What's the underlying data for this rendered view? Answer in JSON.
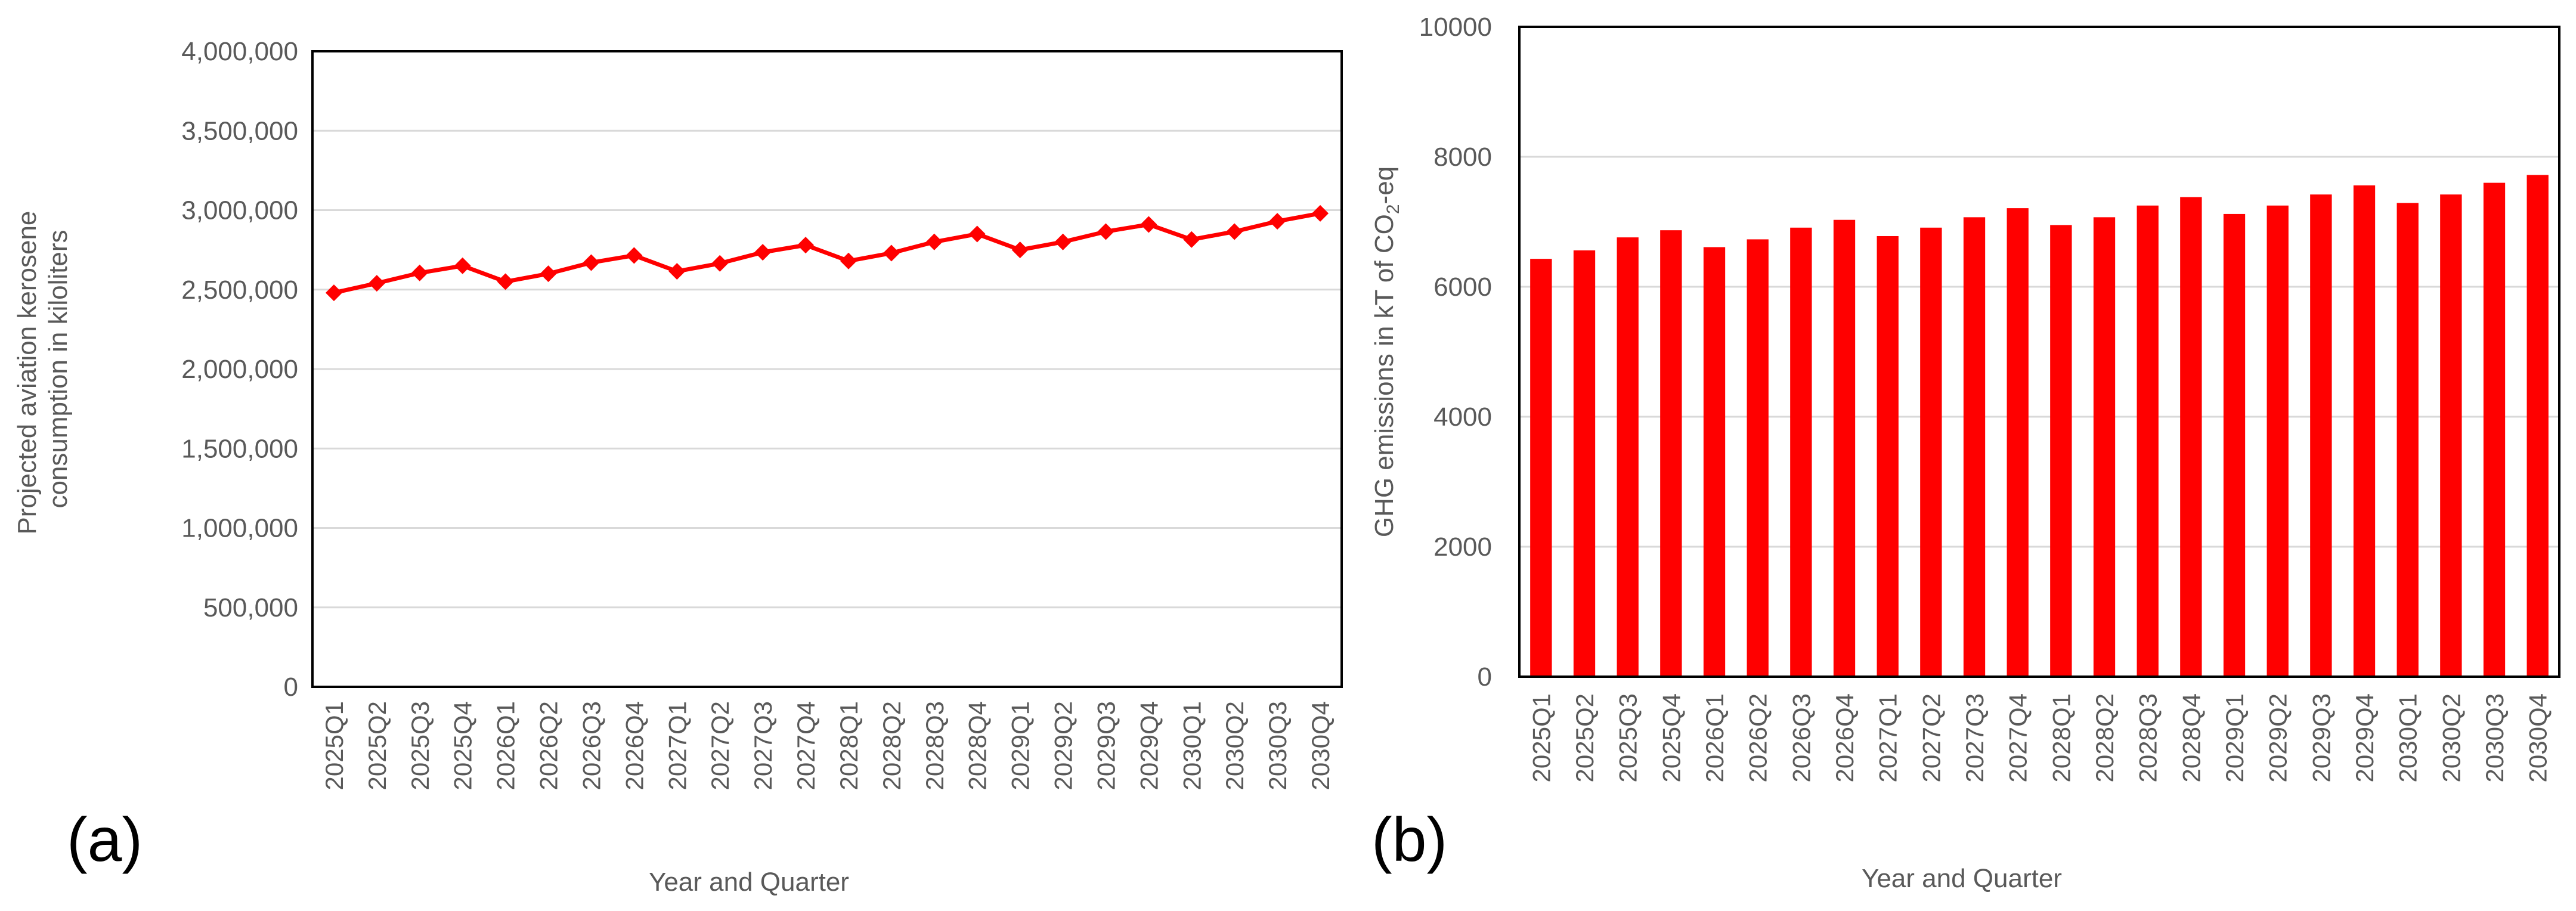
{
  "chart_data": [
    {
      "type": "line",
      "panel_label": "(a)",
      "title": "",
      "xlabel": "Year and Quarter",
      "ylabel_lines": [
        "Projected aviation kerosene",
        "consumption in kiloliters"
      ],
      "ylim": [
        0,
        4000000
      ],
      "yticks": [
        "0",
        "500,000",
        "1,000,000",
        "1,500,000",
        "2,000,000",
        "2,500,000",
        "3,000,000",
        "3,500,000",
        "4,000,000"
      ],
      "grid": true,
      "legend": "none",
      "color": "#FF0000",
      "marker": "diamond",
      "categories": [
        "2025Q1",
        "2025Q2",
        "2025Q3",
        "2025Q4",
        "2026Q1",
        "2026Q2",
        "2026Q3",
        "2026Q4",
        "2027Q1",
        "2027Q2",
        "2027Q3",
        "2027Q4",
        "2028Q1",
        "2028Q2",
        "2028Q3",
        "2028Q4",
        "2029Q1",
        "2029Q2",
        "2029Q3",
        "2029Q4",
        "2030Q1",
        "2030Q2",
        "2030Q3",
        "2030Q4"
      ],
      "values": [
        2480000,
        2540000,
        2605000,
        2650000,
        2550000,
        2600000,
        2670000,
        2715000,
        2615000,
        2665000,
        2735000,
        2780000,
        2680000,
        2730000,
        2800000,
        2850000,
        2750000,
        2800000,
        2865000,
        2910000,
        2815000,
        2865000,
        2930000,
        2980000
      ]
    },
    {
      "type": "bar",
      "panel_label": "(b)",
      "title": "",
      "xlabel": "Year and Quarter",
      "ylabel": {
        "prefix": "GHG emissions in kT of CO",
        "sub": "2",
        "suffix": "-eq"
      },
      "ylim": [
        0,
        10000
      ],
      "yticks": [
        "0",
        "2000",
        "4000",
        "6000",
        "8000",
        "10000"
      ],
      "grid": true,
      "legend": "none",
      "color": "#FF0000",
      "categories": [
        "2025Q1",
        "2025Q2",
        "2025Q3",
        "2025Q4",
        "2026Q1",
        "2026Q2",
        "2026Q3",
        "2026Q4",
        "2027Q1",
        "2027Q2",
        "2027Q3",
        "2027Q4",
        "2028Q1",
        "2028Q2",
        "2028Q3",
        "2028Q4",
        "2029Q1",
        "2029Q2",
        "2029Q3",
        "2029Q4",
        "2030Q1",
        "2030Q2",
        "2030Q3",
        "2030Q4"
      ],
      "values": [
        6430,
        6560,
        6760,
        6870,
        6610,
        6730,
        6910,
        7030,
        6780,
        6910,
        7070,
        7210,
        6950,
        7070,
        7250,
        7380,
        7120,
        7250,
        7420,
        7560,
        7290,
        7420,
        7600,
        7720
      ]
    }
  ]
}
